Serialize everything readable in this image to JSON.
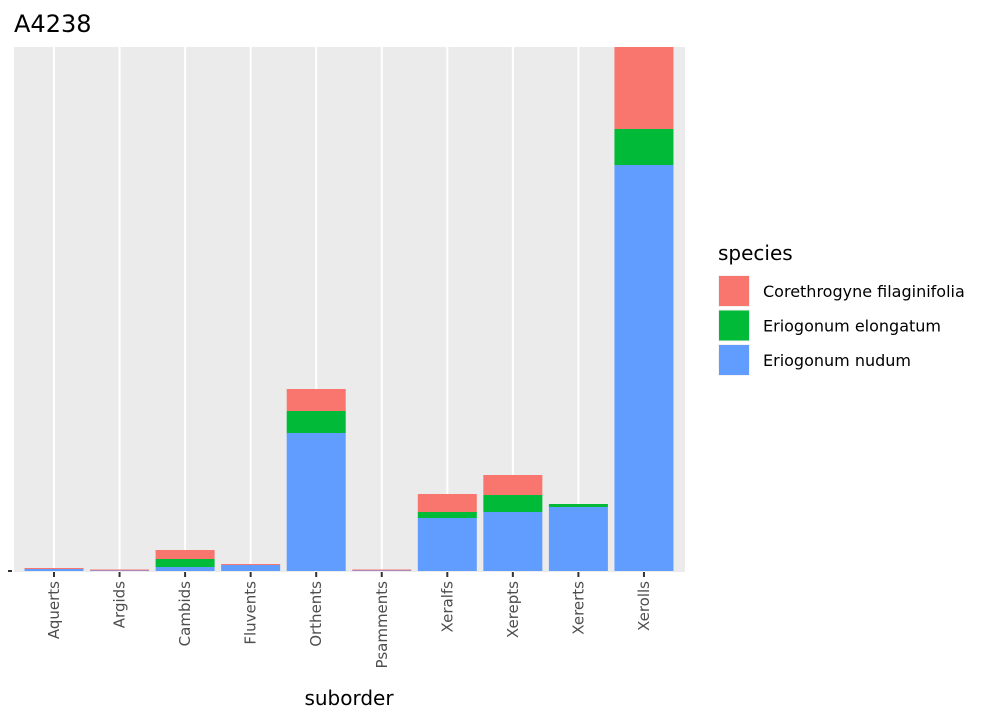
{
  "chart_data": {
    "type": "bar",
    "stacked": true,
    "title": "A4238",
    "xlabel": "suborder",
    "ylabel": "",
    "ylim": [
      0,
      524
    ],
    "categories": [
      "Aquerts",
      "Argids",
      "Cambids",
      "Fluvents",
      "Orthents",
      "Psamments",
      "Xeralfs",
      "Xerepts",
      "Xererts",
      "Xerolls"
    ],
    "series": [
      {
        "name": "Eriogonum nudum",
        "color": "#619CFF",
        "values": [
          2,
          0.5,
          4,
          6,
          138,
          0.5,
          53,
          59,
          64,
          406
        ]
      },
      {
        "name": "Eriogonum elongatum",
        "color": "#00BA38",
        "values": [
          0,
          0,
          8,
          0,
          22,
          0,
          6,
          17,
          3,
          36
        ]
      },
      {
        "name": "Corethrogyne filaginifolia",
        "color": "#F8766D",
        "values": [
          1,
          1,
          9,
          1,
          22,
          1,
          18,
          20,
          0,
          82
        ]
      }
    ],
    "legend": {
      "title": "species",
      "placement": "right",
      "order": [
        "Corethrogyne filaginifolia",
        "Eriogonum elongatum",
        "Eriogonum nudum"
      ]
    },
    "grid": true
  }
}
